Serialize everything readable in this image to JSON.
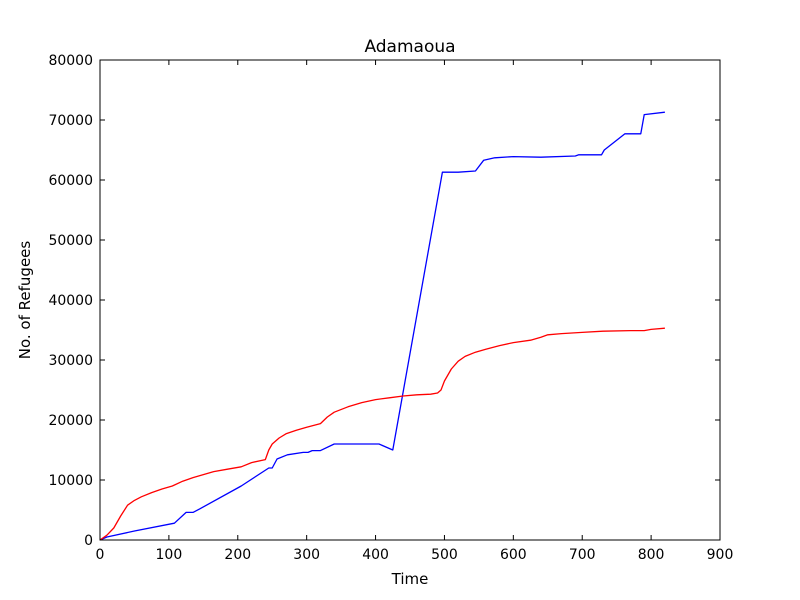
{
  "chart_data": {
    "type": "line",
    "title": "Adamaoua",
    "xlabel": "Time",
    "ylabel": "No. of Refugees",
    "xlim": [
      0,
      900
    ],
    "ylim": [
      0,
      80000
    ],
    "xticks": [
      0,
      100,
      200,
      300,
      400,
      500,
      600,
      700,
      800,
      900
    ],
    "yticks": [
      0,
      10000,
      20000,
      30000,
      40000,
      50000,
      60000,
      70000,
      80000
    ],
    "grid": false,
    "legend": "none",
    "series": [
      {
        "color": "#0000ff",
        "points": [
          [
            0,
            0
          ],
          [
            10,
            500
          ],
          [
            50,
            1500
          ],
          [
            108,
            2800
          ],
          [
            125,
            4600
          ],
          [
            135,
            4600
          ],
          [
            145,
            5200
          ],
          [
            205,
            9000
          ],
          [
            245,
            12000
          ],
          [
            250,
            12000
          ],
          [
            257,
            13500
          ],
          [
            272,
            14200
          ],
          [
            295,
            14600
          ],
          [
            302,
            14600
          ],
          [
            308,
            14900
          ],
          [
            320,
            14900
          ],
          [
            340,
            16000
          ],
          [
            405,
            16000
          ],
          [
            425,
            15000
          ],
          [
            497,
            61300
          ],
          [
            520,
            61300
          ],
          [
            545,
            61500
          ],
          [
            557,
            63300
          ],
          [
            573,
            63700
          ],
          [
            600,
            63900
          ],
          [
            640,
            63800
          ],
          [
            690,
            64000
          ],
          [
            695,
            64200
          ],
          [
            728,
            64200
          ],
          [
            732,
            65000
          ],
          [
            762,
            67700
          ],
          [
            785,
            67700
          ],
          [
            790,
            70900
          ],
          [
            820,
            71300
          ]
        ]
      },
      {
        "color": "#ff0000",
        "points": [
          [
            0,
            0
          ],
          [
            10,
            800
          ],
          [
            20,
            2000
          ],
          [
            30,
            4000
          ],
          [
            40,
            5800
          ],
          [
            50,
            6600
          ],
          [
            60,
            7200
          ],
          [
            75,
            7900
          ],
          [
            90,
            8500
          ],
          [
            105,
            9000
          ],
          [
            120,
            9800
          ],
          [
            135,
            10400
          ],
          [
            150,
            10900
          ],
          [
            165,
            11400
          ],
          [
            185,
            11800
          ],
          [
            205,
            12200
          ],
          [
            220,
            12900
          ],
          [
            240,
            13400
          ],
          [
            245,
            15000
          ],
          [
            250,
            16000
          ],
          [
            260,
            17000
          ],
          [
            270,
            17700
          ],
          [
            285,
            18300
          ],
          [
            300,
            18800
          ],
          [
            320,
            19400
          ],
          [
            330,
            20500
          ],
          [
            340,
            21300
          ],
          [
            360,
            22200
          ],
          [
            380,
            22900
          ],
          [
            400,
            23400
          ],
          [
            420,
            23700
          ],
          [
            440,
            24000
          ],
          [
            460,
            24200
          ],
          [
            480,
            24300
          ],
          [
            490,
            24500
          ],
          [
            495,
            25000
          ],
          [
            500,
            26500
          ],
          [
            510,
            28500
          ],
          [
            520,
            29800
          ],
          [
            530,
            30600
          ],
          [
            545,
            31300
          ],
          [
            560,
            31800
          ],
          [
            580,
            32400
          ],
          [
            600,
            32900
          ],
          [
            625,
            33300
          ],
          [
            640,
            33800
          ],
          [
            650,
            34200
          ],
          [
            670,
            34400
          ],
          [
            700,
            34600
          ],
          [
            730,
            34800
          ],
          [
            770,
            34900
          ],
          [
            790,
            34900
          ],
          [
            800,
            35100
          ],
          [
            820,
            35300
          ]
        ]
      }
    ]
  }
}
